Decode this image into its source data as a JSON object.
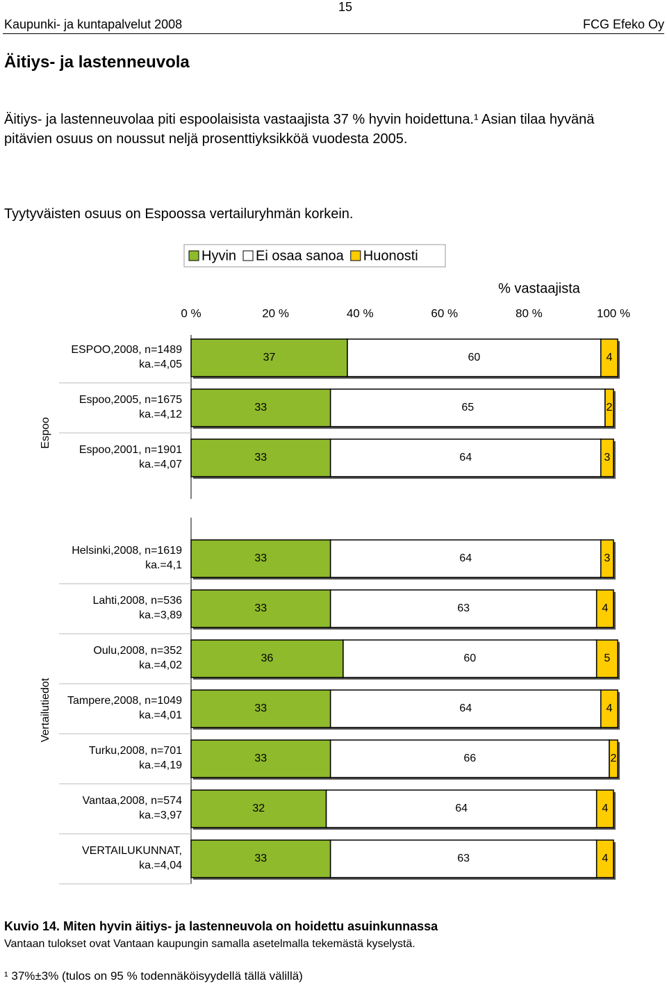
{
  "header": {
    "left": "Kaupunki- ja kuntapalvelut 2008",
    "page": "15",
    "right": "FCG Efeko Oy"
  },
  "heading": "Äitiys- ja lastenneuvola",
  "paragraphs": [
    "Äitiys- ja lastenneuvolaa piti  espoolaisista vastaajista 37 % hyvin hoidettuna.¹ Asian tilaa hyvänä pitävien osuus on noussut neljä prosenttiyksikköä vuodesta 2005.",
    "Tyytyväisten osuus on Espoossa vertailuryhmän korkein."
  ],
  "chart_data": {
    "type": "stacked-barh",
    "xlabel": "% vastaajista",
    "xlim": [
      0,
      100
    ],
    "xticks": [
      {
        "value": 0,
        "label": "0 %"
      },
      {
        "value": 20,
        "label": "20 %"
      },
      {
        "value": 40,
        "label": "40 %"
      },
      {
        "value": 60,
        "label": "60 %"
      },
      {
        "value": 80,
        "label": "80 %"
      },
      {
        "value": 100,
        "label": "100 %"
      }
    ],
    "group_labels": [
      "Espoo",
      "Vertailutiedot"
    ],
    "categories": [
      [
        "ESPOO,2008, n=1489",
        "ka.=4,05"
      ],
      [
        "Espoo,2005, n=1675",
        "ka.=4,12"
      ],
      [
        "Espoo,2001, n=1901",
        "ka.=4,07"
      ],
      [
        "Helsinki,2008, n=1619",
        "ka.=4,1"
      ],
      [
        "Lahti,2008, n=536",
        "ka.=3,89"
      ],
      [
        "Oulu,2008, n=352",
        "ka.=4,02"
      ],
      [
        "Tampere,2008, n=1049",
        "ka.=4,01"
      ],
      [
        "Turku,2008, n=701",
        "ka.=4,19"
      ],
      [
        "Vantaa,2008, n=574",
        "ka.=3,97"
      ],
      [
        "VERTAILUKUNNAT,",
        "ka.=4,04"
      ]
    ],
    "series": [
      {
        "name": "Hyvin",
        "color": "#8fba2c",
        "values": [
          37,
          33,
          33,
          33,
          33,
          36,
          33,
          33,
          32,
          33
        ]
      },
      {
        "name": "Ei osaa sanoa",
        "color": "#ffffff",
        "values": [
          60,
          65,
          64,
          64,
          63,
          60,
          64,
          66,
          64,
          63
        ]
      },
      {
        "name": "Huonosti",
        "color": "#ffcc00",
        "values": [
          4,
          2,
          3,
          3,
          4,
          5,
          4,
          2,
          4,
          4
        ]
      }
    ]
  },
  "caption": {
    "title": "Kuvio 14. Miten hyvin äitiys- ja lastenneuvola on hoidettu asuinkunnassa",
    "note": "Vantaan tulokset ovat Vantaan kaupungin samalla asetelmalla tekemästä kyselystä."
  },
  "footnote": "¹ 37%±3% (tulos on 95 % todennäköisyydellä tällä välillä)"
}
